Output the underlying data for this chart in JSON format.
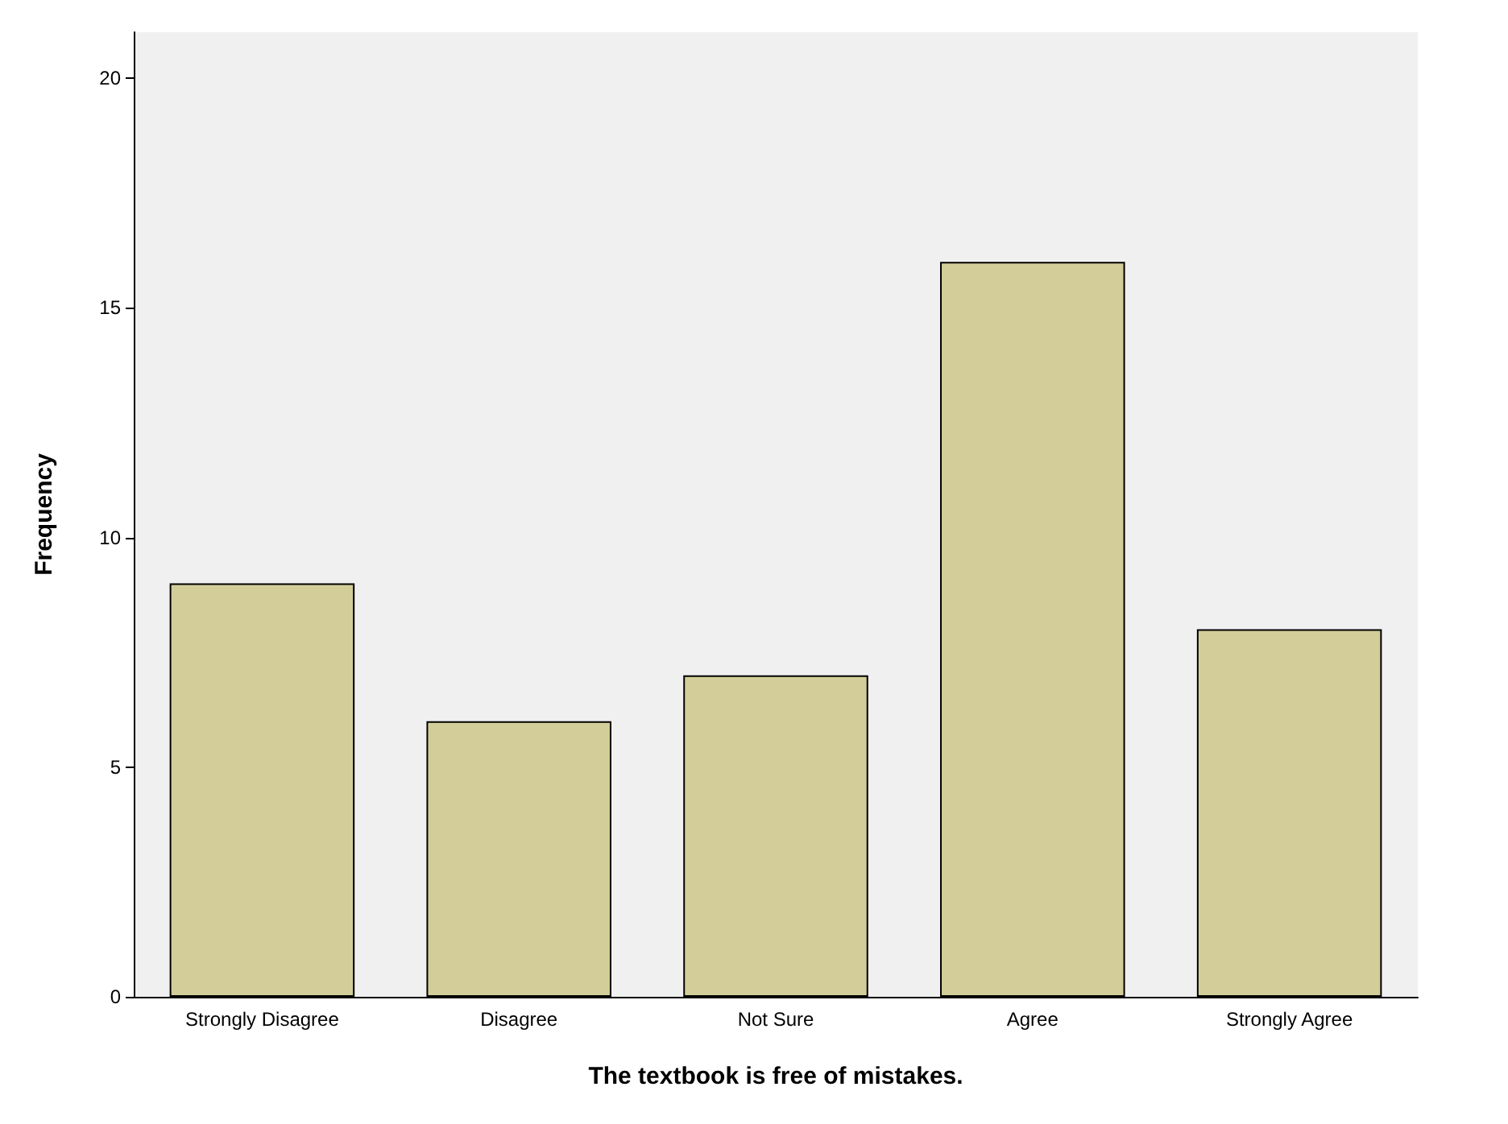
{
  "chart_data": {
    "type": "bar",
    "xlabel": "The textbook is free of mistakes.",
    "ylabel": "Frequency",
    "categories": [
      "Strongly Disagree",
      "Disagree",
      "Not Sure",
      "Agree",
      "Strongly Agree"
    ],
    "values": [
      9,
      6,
      7,
      16,
      8
    ],
    "color": "#d3ce99",
    "ylim": [
      0,
      21
    ],
    "yticks": [
      0,
      5,
      10,
      15,
      20
    ],
    "grid": false
  }
}
